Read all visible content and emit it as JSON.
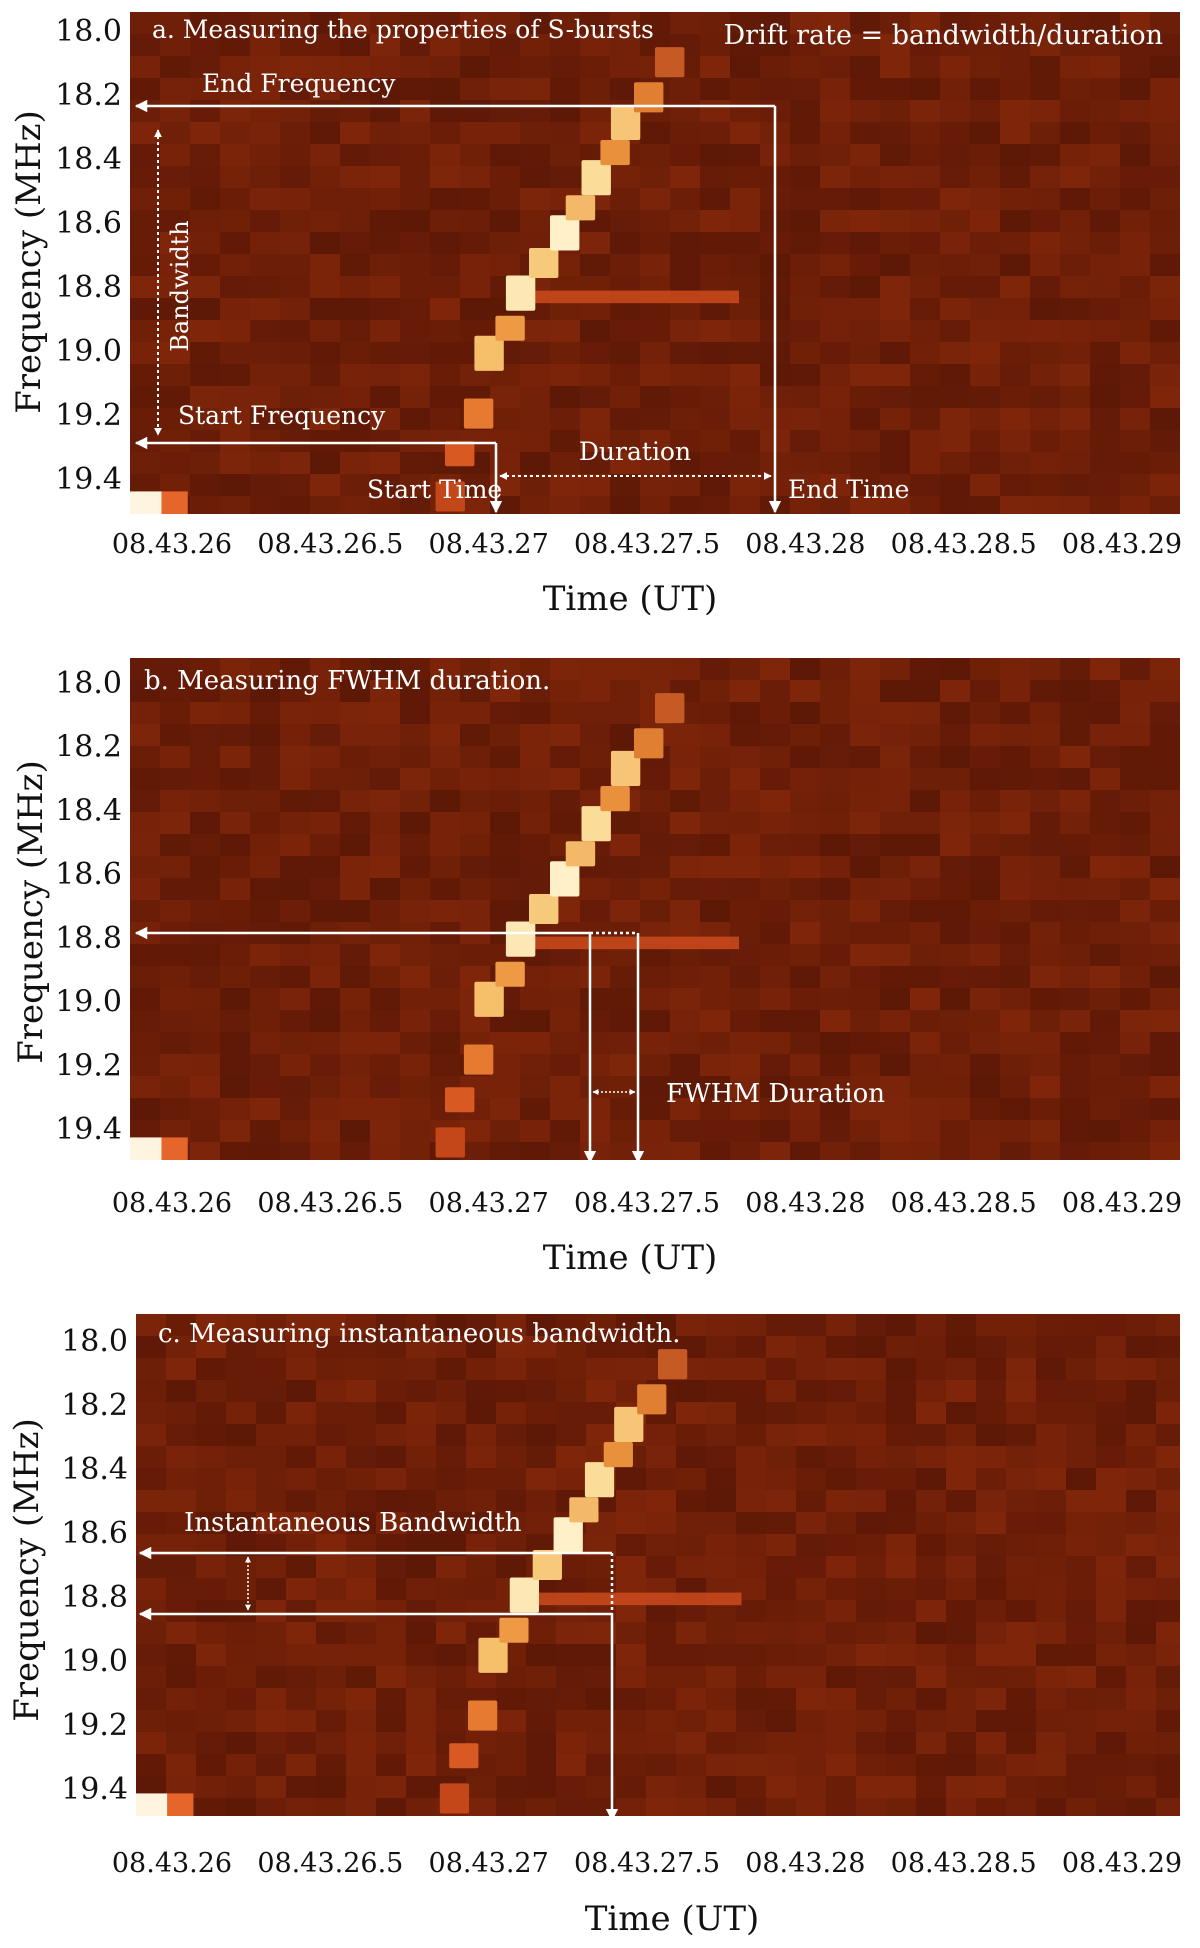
{
  "chart_data": [
    {
      "type": "heatmap",
      "panel_label": "a. Measuring the properties of S-bursts",
      "note": "Drift rate = bandwidth/duration",
      "xlabel": "Time (UT)",
      "ylabel": "Frequency (MHz)",
      "xticks": [
        "08.43.26",
        "08.43.26.5",
        "08.43.27",
        "08.43.27.5",
        "08.43.28",
        "08.43.28.5",
        "08.43.29"
      ],
      "yticks": [
        "18.0",
        "18.2",
        "18.4",
        "18.6",
        "18.8",
        "19.0",
        "19.2",
        "19.4"
      ],
      "annotations": {
        "end_frequency": "End Frequency",
        "bandwidth": "Bandwidth",
        "start_frequency": "Start Frequency",
        "duration": "Duration",
        "start_time": "Start Time",
        "end_time": "End Time"
      }
    },
    {
      "type": "heatmap",
      "panel_label": "b. Measuring FWHM duration.",
      "xlabel": "Time (UT)",
      "ylabel": "Frequency (MHz)",
      "xticks": [
        "08.43.26",
        "08.43.26.5",
        "08.43.27",
        "08.43.27.5",
        "08.43.28",
        "08.43.28.5",
        "08.43.29"
      ],
      "yticks": [
        "18.0",
        "18.2",
        "18.4",
        "18.6",
        "18.8",
        "19.0",
        "19.2",
        "19.4"
      ],
      "annotations": {
        "fwhm": "FWHM Duration"
      }
    },
    {
      "type": "heatmap",
      "panel_label": "c. Measuring instantaneous bandwidth.",
      "xlabel": "Time (UT)",
      "ylabel": "Frequency (MHz)",
      "xticks": [
        "08.43.26",
        "08.43.26.5",
        "08.43.27",
        "08.43.27.5",
        "08.43.28",
        "08.43.28.5",
        "08.43.29"
      ],
      "yticks": [
        "18.0",
        "18.2",
        "18.4",
        "18.6",
        "18.8",
        "19.0",
        "19.2",
        "19.4"
      ],
      "annotations": {
        "inst_bw": "Instantaneous Bandwidth"
      }
    }
  ],
  "colors": {
    "background_dark": "#5a1505",
    "background_mid": "#8a2c0e",
    "burst_bright": "#fff2c8",
    "annotation": "#ffffff"
  }
}
